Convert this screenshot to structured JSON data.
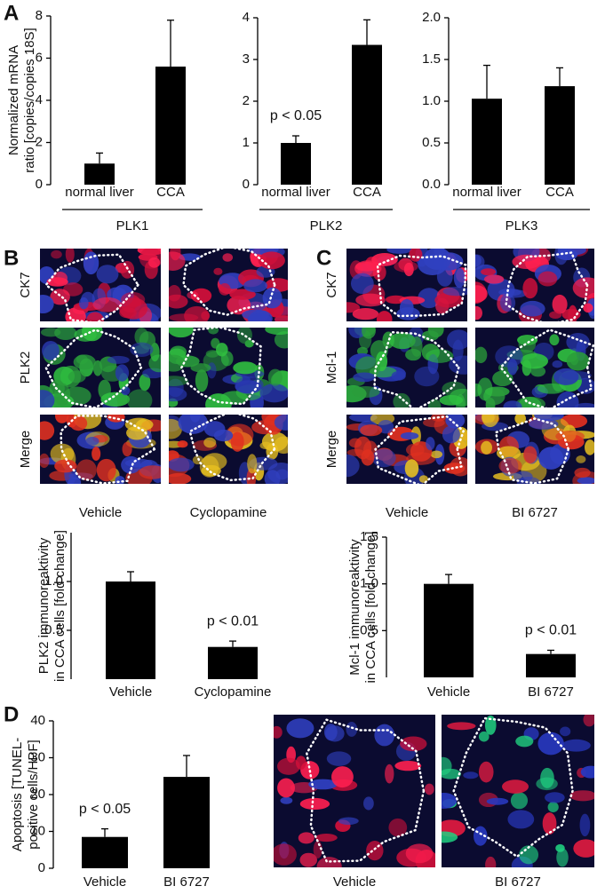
{
  "chart_data": [
    {
      "type": "bar",
      "ylabel": [
        "Normalized mRNA",
        "ratio [copies/copies 18S]"
      ],
      "group": "PLK1",
      "categories": [
        "normal liver",
        "CCA"
      ],
      "values": [
        1.0,
        5.6
      ],
      "errors": [
        0.5,
        2.2
      ],
      "color": "#000000",
      "ylim": [
        0,
        8
      ],
      "yticks": [
        0,
        2,
        4,
        6,
        8
      ]
    },
    {
      "type": "bar",
      "group": "PLK2",
      "annotation": "p < 0.05",
      "categories": [
        "normal liver",
        "CCA"
      ],
      "values": [
        1.0,
        3.35
      ],
      "errors": [
        0.17,
        0.6
      ],
      "color": "#000000",
      "ylim": [
        0,
        4
      ],
      "yticks": [
        0,
        1,
        2,
        3,
        4
      ]
    },
    {
      "type": "bar",
      "group": "PLK3",
      "categories": [
        "normal liver",
        "CCA"
      ],
      "values": [
        1.03,
        1.18
      ],
      "errors": [
        0.4,
        0.22
      ],
      "color": "#000000",
      "ylim": [
        0,
        2
      ],
      "yticks": [
        {
          "value": 0,
          "label": "0.0"
        },
        0.5,
        {
          "value": 1,
          "label": "1.0"
        },
        1.5,
        {
          "value": 2,
          "label": "2.0"
        }
      ]
    },
    {
      "type": "bar",
      "ylabel": [
        "PLK2 immunoreaktivity",
        "in CCA cells [fold change]"
      ],
      "annotation": "p < 0.01",
      "categories": [
        "Vehicle",
        "Cyclopamine"
      ],
      "values": [
        1.0,
        0.33
      ],
      "errors": [
        0.1,
        0.06
      ],
      "color": "#000000",
      "ylim": [
        0,
        1.5
      ],
      "yticks": [
        0.5,
        {
          "value": 1,
          "label": "1.0"
        }
      ]
    },
    {
      "type": "bar",
      "ylabel": [
        "Mcl-1 immunoreaktivity",
        "in CCA cells [fold change]"
      ],
      "annotation": "p < 0.01",
      "categories": [
        "Vehicle",
        "BI 6727"
      ],
      "values": [
        1.0,
        0.25
      ],
      "errors": [
        0.1,
        0.04
      ],
      "color": "#000000",
      "ylim": [
        0,
        1.5
      ],
      "yticks": [
        0.5,
        {
          "value": 1,
          "label": "1.0"
        },
        1.5
      ]
    },
    {
      "type": "bar",
      "ylabel": [
        "Apoptosis [TUNEL-",
        "positive cells/HPF]"
      ],
      "annotation": "p < 0.05",
      "categories": [
        "Vehicle",
        "BI 6727"
      ],
      "values": [
        8.5,
        24.8
      ],
      "errors": [
        2.2,
        5.8
      ],
      "color": "#000000",
      "ylim": [
        0,
        40
      ],
      "yticks": [
        0,
        10,
        20,
        30,
        40
      ]
    }
  ],
  "figure": {
    "panel_labels": [
      "A",
      "B",
      "C",
      "D"
    ],
    "panel_B": {
      "rows": [
        "CK7",
        "PLK2",
        "Merge"
      ],
      "columns": [
        "Vehicle",
        "Cyclopamine"
      ]
    },
    "panel_C": {
      "rows": [
        "CK7",
        "Mcl-1",
        "Merge"
      ],
      "columns": [
        "Vehicle",
        "BI 6727"
      ]
    },
    "panel_D": {
      "columns": [
        "Vehicle",
        "BI 6727"
      ]
    }
  }
}
